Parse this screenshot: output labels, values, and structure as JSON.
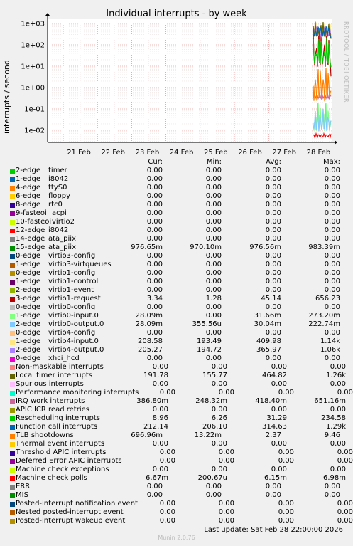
{
  "chart_data": {
    "type": "line",
    "title": "Individual interrupts - by week",
    "ylabel": "interrupts / second",
    "yscale": "log",
    "ylim": [
      0.005,
      1000
    ],
    "yticks": [
      "1e+03",
      "1e+02",
      "1e+01",
      "1e+00",
      "1e-01",
      "1e-02"
    ],
    "xticks": [
      "21 Feb",
      "22 Feb",
      "23 Feb",
      "24 Feb",
      "25 Feb",
      "26 Feb",
      "27 Feb",
      "28 Feb"
    ],
    "grid": true,
    "columns": [
      "Cur:",
      "Min:",
      "Avg:",
      "Max:"
    ],
    "series": [
      {
        "name": "2-edge",
        "desc": "timer",
        "color": "#00cc00",
        "cur": "0.00",
        "min": "0.00",
        "avg": "0.00",
        "max": "0.00"
      },
      {
        "name": "1-edge",
        "desc": "i8042",
        "color": "#0066b3",
        "cur": "0.00",
        "min": "0.00",
        "avg": "0.00",
        "max": "0.00"
      },
      {
        "name": "4-edge",
        "desc": "ttyS0",
        "color": "#ff8000",
        "cur": "0.00",
        "min": "0.00",
        "avg": "0.00",
        "max": "0.00"
      },
      {
        "name": "6-edge",
        "desc": "floppy",
        "color": "#ffcc00",
        "cur": "0.00",
        "min": "0.00",
        "avg": "0.00",
        "max": "0.00"
      },
      {
        "name": "8-edge",
        "desc": "rtc0",
        "color": "#330099",
        "cur": "0.00",
        "min": "0.00",
        "avg": "0.00",
        "max": "0.00"
      },
      {
        "name": "9-fasteoi",
        "desc": "acpi",
        "color": "#990099",
        "cur": "0.00",
        "min": "0.00",
        "avg": "0.00",
        "max": "0.00"
      },
      {
        "name": "10-fasteoi",
        "desc": "virtio2",
        "color": "#ccff00",
        "cur": "0.00",
        "min": "0.00",
        "avg": "0.00",
        "max": "0.00"
      },
      {
        "name": "12-edge",
        "desc": "i8042",
        "color": "#ff0000",
        "cur": "0.00",
        "min": "0.00",
        "avg": "0.00",
        "max": "0.00"
      },
      {
        "name": "14-edge",
        "desc": "ata_piix",
        "color": "#808080",
        "cur": "0.00",
        "min": "0.00",
        "avg": "0.00",
        "max": "0.00"
      },
      {
        "name": "15-edge",
        "desc": "ata_piix",
        "color": "#008f00",
        "cur": "976.65m",
        "min": "970.10m",
        "avg": "976.56m",
        "max": "983.39m"
      },
      {
        "name": "0-edge",
        "desc": "virtio3-config",
        "color": "#00487d",
        "cur": "0.00",
        "min": "0.00",
        "avg": "0.00",
        "max": "0.00"
      },
      {
        "name": "1-edge",
        "desc": "virtio3-virtqueues",
        "color": "#b35a00",
        "cur": "0.00",
        "min": "0.00",
        "avg": "0.00",
        "max": "0.00"
      },
      {
        "name": "0-edge",
        "desc": "virtio1-config",
        "color": "#b38f00",
        "cur": "0.00",
        "min": "0.00",
        "avg": "0.00",
        "max": "0.00"
      },
      {
        "name": "1-edge",
        "desc": "virtio1-control",
        "color": "#6b006b",
        "cur": "0.00",
        "min": "0.00",
        "avg": "0.00",
        "max": "0.00"
      },
      {
        "name": "2-edge",
        "desc": "virtio1-event",
        "color": "#8fb300",
        "cur": "0.00",
        "min": "0.00",
        "avg": "0.00",
        "max": "0.00"
      },
      {
        "name": "3-edge",
        "desc": "virtio1-request",
        "color": "#b30000",
        "cur": "3.34",
        "min": "1.28",
        "avg": "45.14",
        "max": "656.23"
      },
      {
        "name": "0-edge",
        "desc": "virtio0-config",
        "color": "#bebebe",
        "cur": "0.00",
        "min": "0.00",
        "avg": "0.00",
        "max": "0.00"
      },
      {
        "name": "1-edge",
        "desc": "virtio0-input.0",
        "color": "#80ff80",
        "cur": "28.09m",
        "min": "0.00",
        "avg": "31.66m",
        "max": "273.20m"
      },
      {
        "name": "2-edge",
        "desc": "virtio0-output.0",
        "color": "#80c9ff",
        "cur": "28.09m",
        "min": "355.56u",
        "avg": "30.04m",
        "max": "222.74m"
      },
      {
        "name": "0-edge",
        "desc": "virtio4-config",
        "color": "#ffc080",
        "cur": "0.00",
        "min": "0.00",
        "avg": "0.00",
        "max": "0.00"
      },
      {
        "name": "1-edge",
        "desc": "virtio4-input.0",
        "color": "#ffe680",
        "cur": "208.58",
        "min": "193.49",
        "avg": "409.98",
        "max": "1.14k"
      },
      {
        "name": "2-edge",
        "desc": "virtio4-output.0",
        "color": "#aa80ff",
        "cur": "205.27",
        "min": "194.72",
        "avg": "365.97",
        "max": "1.06k"
      },
      {
        "name": "0-edge",
        "desc": "xhci_hcd",
        "color": "#ee00cc",
        "cur": "0.00",
        "min": "0.00",
        "avg": "0.00",
        "max": "0.00"
      },
      {
        "name": "Non-maskable interrupts",
        "desc": "",
        "color": "#ff8080",
        "cur": "0.00",
        "min": "0.00",
        "avg": "0.00",
        "max": "0.00"
      },
      {
        "name": "Local timer interrupts",
        "desc": "",
        "color": "#666600",
        "cur": "191.78",
        "min": "155.77",
        "avg": "464.82",
        "max": "1.26k"
      },
      {
        "name": "Spurious interrupts",
        "desc": "",
        "color": "#ffbfff",
        "cur": "0.00",
        "min": "0.00",
        "avg": "0.00",
        "max": "0.00"
      },
      {
        "name": "Performance monitoring interrupts",
        "desc": "",
        "color": "#00ffcc",
        "cur": "0.00",
        "min": "0.00",
        "avg": "0.00",
        "max": "0.00"
      },
      {
        "name": "IRQ work interrupts",
        "desc": "",
        "color": "#cc6699",
        "cur": "386.80m",
        "min": "248.32m",
        "avg": "418.40m",
        "max": "651.16m"
      },
      {
        "name": "APIC ICR read retries",
        "desc": "",
        "color": "#999900",
        "cur": "0.00",
        "min": "0.00",
        "avg": "0.00",
        "max": "0.00"
      },
      {
        "name": "Rescheduling interrupts",
        "desc": "",
        "color": "#00cc00",
        "cur": "8.96",
        "min": "6.26",
        "avg": "31.29",
        "max": "234.58"
      },
      {
        "name": "Function call interrupts",
        "desc": "",
        "color": "#0066b3",
        "cur": "212.14",
        "min": "206.10",
        "avg": "314.63",
        "max": "1.29k"
      },
      {
        "name": "TLB shootdowns",
        "desc": "",
        "color": "#ff8000",
        "cur": "696.96m",
        "min": "13.22m",
        "avg": "2.37",
        "max": "9.46"
      },
      {
        "name": "Thermal event interrupts",
        "desc": "",
        "color": "#ffcc00",
        "cur": "0.00",
        "min": "0.00",
        "avg": "0.00",
        "max": "0.00"
      },
      {
        "name": "Threshold APIC interrupts",
        "desc": "",
        "color": "#330099",
        "cur": "0.00",
        "min": "0.00",
        "avg": "0.00",
        "max": "0.00"
      },
      {
        "name": "Deferred Error APIC interrupts",
        "desc": "",
        "color": "#990099",
        "cur": "0.00",
        "min": "0.00",
        "avg": "0.00",
        "max": "0.00"
      },
      {
        "name": "Machine check exceptions",
        "desc": "",
        "color": "#ccff00",
        "cur": "0.00",
        "min": "0.00",
        "avg": "0.00",
        "max": "0.00"
      },
      {
        "name": "Machine check polls",
        "desc": "",
        "color": "#ff0000",
        "cur": "6.67m",
        "min": "200.67u",
        "avg": "6.15m",
        "max": "6.98m"
      },
      {
        "name": "ERR",
        "desc": "",
        "color": "#808080",
        "cur": "0.00",
        "min": "0.00",
        "avg": "0.00",
        "max": "0.00"
      },
      {
        "name": "MIS",
        "desc": "",
        "color": "#008f00",
        "cur": "0.00",
        "min": "0.00",
        "avg": "0.00",
        "max": "0.00"
      },
      {
        "name": "Posted-interrupt notification event",
        "desc": "",
        "color": "#00487d",
        "cur": "0.00",
        "min": "0.00",
        "avg": "0.00",
        "max": "0.00"
      },
      {
        "name": "Nested posted-interrupt event",
        "desc": "",
        "color": "#b35a00",
        "cur": "0.00",
        "min": "0.00",
        "avg": "0.00",
        "max": "0.00"
      },
      {
        "name": "Posted-interrupt wakeup event",
        "desc": "",
        "color": "#b38f00",
        "cur": "0.00",
        "min": "0.00",
        "avg": "0.00",
        "max": "0.00"
      }
    ]
  },
  "footer": {
    "last_update": "Last update: Sat Feb 28 22:00:00 2026",
    "version": "Munin 2.0.76"
  },
  "side_note": "RRDTOOL / TOBI OETIKER"
}
